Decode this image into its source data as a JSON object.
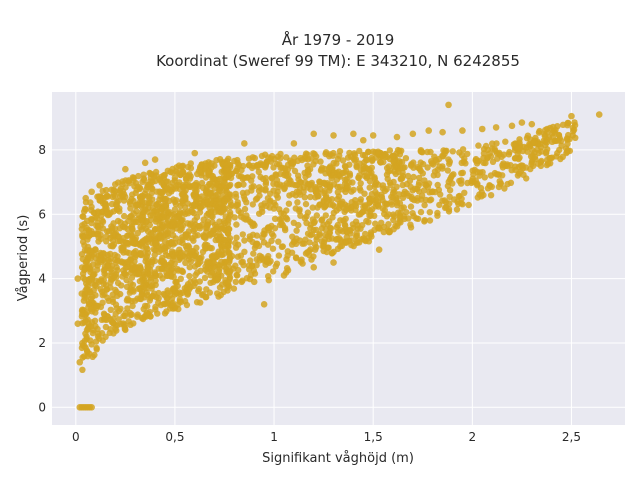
{
  "chart_data": {
    "type": "scatter",
    "title": "År 1979 - 2019",
    "subtitle": "Koordinat (Sweref 99 TM): E 343210, N 6242855",
    "xlabel": "Signifikant våghöjd (m)",
    "ylabel": "Vågperiod (s)",
    "xlim": [
      -0.12,
      2.77
    ],
    "ylim": [
      -0.55,
      9.8
    ],
    "xticks": [
      0,
      0.5,
      1,
      1.5,
      2,
      2.5
    ],
    "xtick_labels": [
      "0",
      "0,5",
      "1",
      "1,5",
      "2",
      "2,5"
    ],
    "yticks": [
      0,
      2,
      4,
      6,
      8
    ],
    "ytick_labels": [
      "0",
      "2",
      "4",
      "6",
      "8"
    ],
    "grid": true,
    "marker_color": "#d4a421",
    "plot_bg": "#e9e9f1",
    "envelope": {
      "x": [
        0.03,
        0.05,
        0.1,
        0.2,
        0.3,
        0.5,
        0.7,
        1.0,
        1.3,
        1.5,
        1.8,
        2.0,
        2.2,
        2.4,
        2.55
      ],
      "upper": [
        6.0,
        6.4,
        6.6,
        7.0,
        7.2,
        7.5,
        7.7,
        7.9,
        8.0,
        8.0,
        8.0,
        8.1,
        8.4,
        8.7,
        9.0
      ],
      "lower": [
        1.1,
        1.2,
        1.6,
        2.2,
        2.6,
        3.0,
        3.4,
        4.0,
        4.8,
        5.2,
        5.8,
        6.3,
        6.9,
        7.5,
        8.2
      ]
    },
    "points": [
      {
        "x": 0.02,
        "y": 0
      },
      {
        "x": 0.03,
        "y": 0
      },
      {
        "x": 0.04,
        "y": 0
      },
      {
        "x": 0.05,
        "y": 0
      },
      {
        "x": 0.06,
        "y": 0
      },
      {
        "x": 0.07,
        "y": 0
      },
      {
        "x": 0.08,
        "y": 0
      },
      {
        "x": 0.01,
        "y": 4.0
      },
      {
        "x": 0.01,
        "y": 2.6
      },
      {
        "x": 0.02,
        "y": 1.4
      },
      {
        "x": 0.05,
        "y": 6.5
      },
      {
        "x": 0.08,
        "y": 6.7
      },
      {
        "x": 0.12,
        "y": 6.9
      },
      {
        "x": 0.6,
        "y": 7.9
      },
      {
        "x": 0.85,
        "y": 8.2
      },
      {
        "x": 1.2,
        "y": 8.5
      },
      {
        "x": 1.3,
        "y": 8.45
      },
      {
        "x": 1.4,
        "y": 8.5
      },
      {
        "x": 1.5,
        "y": 8.45
      },
      {
        "x": 1.62,
        "y": 8.4
      },
      {
        "x": 1.7,
        "y": 8.5
      },
      {
        "x": 1.78,
        "y": 8.6
      },
      {
        "x": 1.85,
        "y": 8.55
      },
      {
        "x": 1.88,
        "y": 9.4
      },
      {
        "x": 1.95,
        "y": 8.6
      },
      {
        "x": 2.05,
        "y": 8.65
      },
      {
        "x": 2.12,
        "y": 8.7
      },
      {
        "x": 2.2,
        "y": 8.75
      },
      {
        "x": 2.25,
        "y": 8.85
      },
      {
        "x": 2.3,
        "y": 8.8
      },
      {
        "x": 2.5,
        "y": 9.05
      },
      {
        "x": 2.64,
        "y": 9.1
      },
      {
        "x": 1.45,
        "y": 8.3
      },
      {
        "x": 1.1,
        "y": 8.2
      },
      {
        "x": 0.95,
        "y": 3.2
      },
      {
        "x": 1.05,
        "y": 4.1
      },
      {
        "x": 1.3,
        "y": 4.5
      },
      {
        "x": 1.53,
        "y": 4.9
      },
      {
        "x": 1.2,
        "y": 4.35
      },
      {
        "x": 0.9,
        "y": 3.9
      },
      {
        "x": 0.25,
        "y": 7.4
      },
      {
        "x": 0.35,
        "y": 7.6
      },
      {
        "x": 0.4,
        "y": 7.7
      }
    ]
  }
}
